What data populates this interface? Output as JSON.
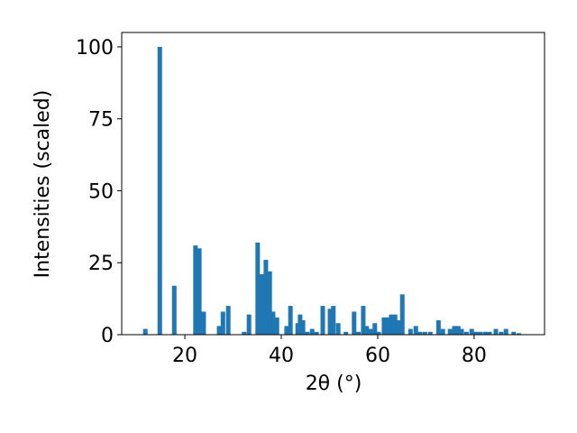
{
  "chart_data": {
    "type": "bar",
    "x_label": "2θ (°)",
    "y_label": "Intensities (scaled)",
    "color": "#1f77b4",
    "x": [
      11.8,
      14.8,
      17.8,
      22.2,
      23.0,
      23.9,
      27.1,
      27.9,
      29.0,
      32.3,
      33.3,
      35.1,
      35.9,
      36.8,
      37.6,
      38.3,
      39.1,
      41.1,
      41.9,
      43.4,
      43.9,
      44.5,
      45.4,
      46.4,
      47.3,
      48.6,
      50.1,
      50.8,
      51.8,
      53.4,
      55.1,
      56.0,
      57.0,
      57.7,
      58.5,
      59.4,
      60.2,
      61.3,
      62.1,
      62.8,
      63.6,
      64.3,
      65.1,
      66.8,
      67.9,
      68.8,
      69.8,
      70.9,
      72.6,
      73.5,
      75.0,
      75.9,
      76.7,
      77.4,
      78.4,
      79.5,
      80.4,
      81.3,
      82.3,
      83.2,
      84.5,
      85.6,
      86.6,
      88.2,
      89.3
    ],
    "values": [
      2,
      100,
      17,
      31,
      30,
      8,
      3,
      8,
      10,
      1,
      7,
      32,
      21,
      26,
      22,
      8,
      6,
      3,
      10,
      4,
      7,
      5,
      1,
      2,
      1,
      10,
      9,
      10,
      4,
      1,
      8,
      1,
      10,
      3,
      2,
      4,
      1,
      6,
      6,
      7,
      7,
      5,
      14,
      2,
      3,
      1,
      1,
      1,
      5,
      2,
      2,
      3,
      3,
      2,
      1,
      2,
      1,
      1,
      1,
      1,
      2,
      1,
      2,
      1,
      0.5
    ],
    "xlim": [
      6.9,
      94.6
    ],
    "ylim": [
      0,
      105
    ],
    "xticks": [
      20,
      40,
      60,
      80
    ],
    "yticks": [
      0,
      25,
      50,
      75,
      100
    ]
  }
}
